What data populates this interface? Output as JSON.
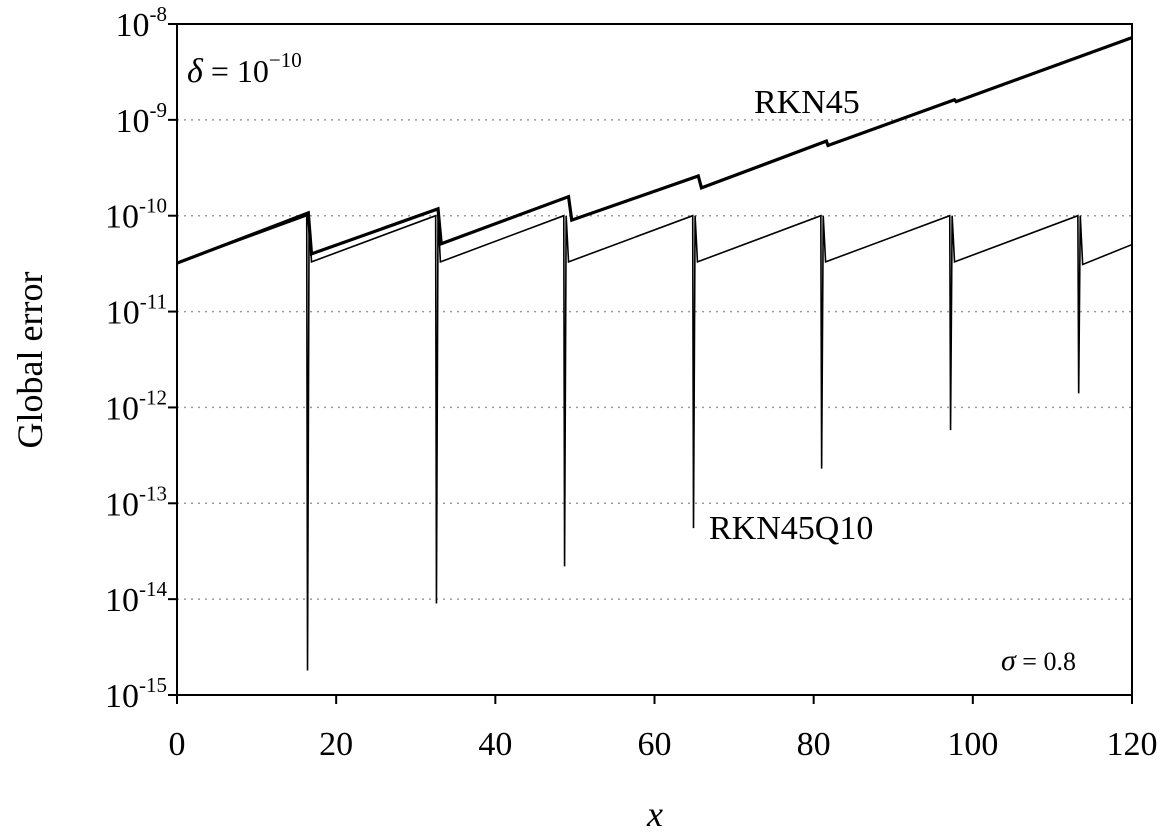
{
  "chart_data": {
    "type": "line",
    "xlabel": "x",
    "ylabel": "Global error",
    "xlim": [
      0,
      120
    ],
    "ylim": [
      1e-15,
      1e-08
    ],
    "yscale": "log",
    "xticks": [
      "0",
      "20",
      "40",
      "60",
      "80",
      "100",
      "120"
    ],
    "ytick_base": "10",
    "ytick_exponents": [
      "-15",
      "-14",
      "-13",
      "-12",
      "-11",
      "-10",
      "-9",
      "-8"
    ],
    "grid": "horizontal dotted",
    "annotations": {
      "delta_symbol": "δ",
      "delta_eq": " = 10",
      "delta_exp": "−10",
      "sigma_symbol": "σ",
      "sigma_eq": " = 0.8"
    },
    "series": [
      {
        "name": "RKN45",
        "color": "#000000",
        "points": [
          [
            0,
            3.2e-11
          ],
          [
            16.5,
            1.07e-10
          ],
          [
            16.9,
            4e-11
          ],
          [
            32.8,
            1.18e-10
          ],
          [
            33.2,
            5.1e-11
          ],
          [
            49.2,
            1.58e-10
          ],
          [
            49.6,
            9e-11
          ],
          [
            65.5,
            2.6e-10
          ],
          [
            65.9,
            1.95e-10
          ],
          [
            81.6,
            6e-10
          ],
          [
            81.8,
            5.4e-10
          ],
          [
            97.7,
            1.62e-09
          ],
          [
            97.9,
            1.55e-09
          ],
          [
            120,
            7.2e-09
          ]
        ]
      },
      {
        "name": "RKN45Q10",
        "color": "#000000",
        "points": [
          [
            0,
            3.2e-11
          ],
          [
            16.3,
            1e-10
          ],
          [
            16.4,
            1.8e-15
          ],
          [
            16.6,
            1e-10
          ],
          [
            16.9,
            3.3e-11
          ],
          [
            32.5,
            1e-10
          ],
          [
            32.6,
            9e-15
          ],
          [
            32.8,
            1e-10
          ],
          [
            33.1,
            3.3e-11
          ],
          [
            48.6,
            1e-10
          ],
          [
            48.7,
            2.2e-14
          ],
          [
            48.9,
            1e-10
          ],
          [
            49.2,
            3.3e-11
          ],
          [
            64.8,
            1e-10
          ],
          [
            64.9,
            5.5e-14
          ],
          [
            65.1,
            1e-10
          ],
          [
            65.4,
            3.3e-11
          ],
          [
            80.9,
            1e-10
          ],
          [
            81.0,
            2.3e-13
          ],
          [
            81.2,
            1e-10
          ],
          [
            81.5,
            3.3e-11
          ],
          [
            97.1,
            1e-10
          ],
          [
            97.2,
            5.8e-13
          ],
          [
            97.4,
            1e-10
          ],
          [
            97.7,
            3.3e-11
          ],
          [
            113.2,
            1e-10
          ],
          [
            113.3,
            1.4e-12
          ],
          [
            113.5,
            1e-10
          ],
          [
            113.8,
            3.1e-11
          ],
          [
            120,
            5e-11
          ]
        ]
      }
    ]
  }
}
